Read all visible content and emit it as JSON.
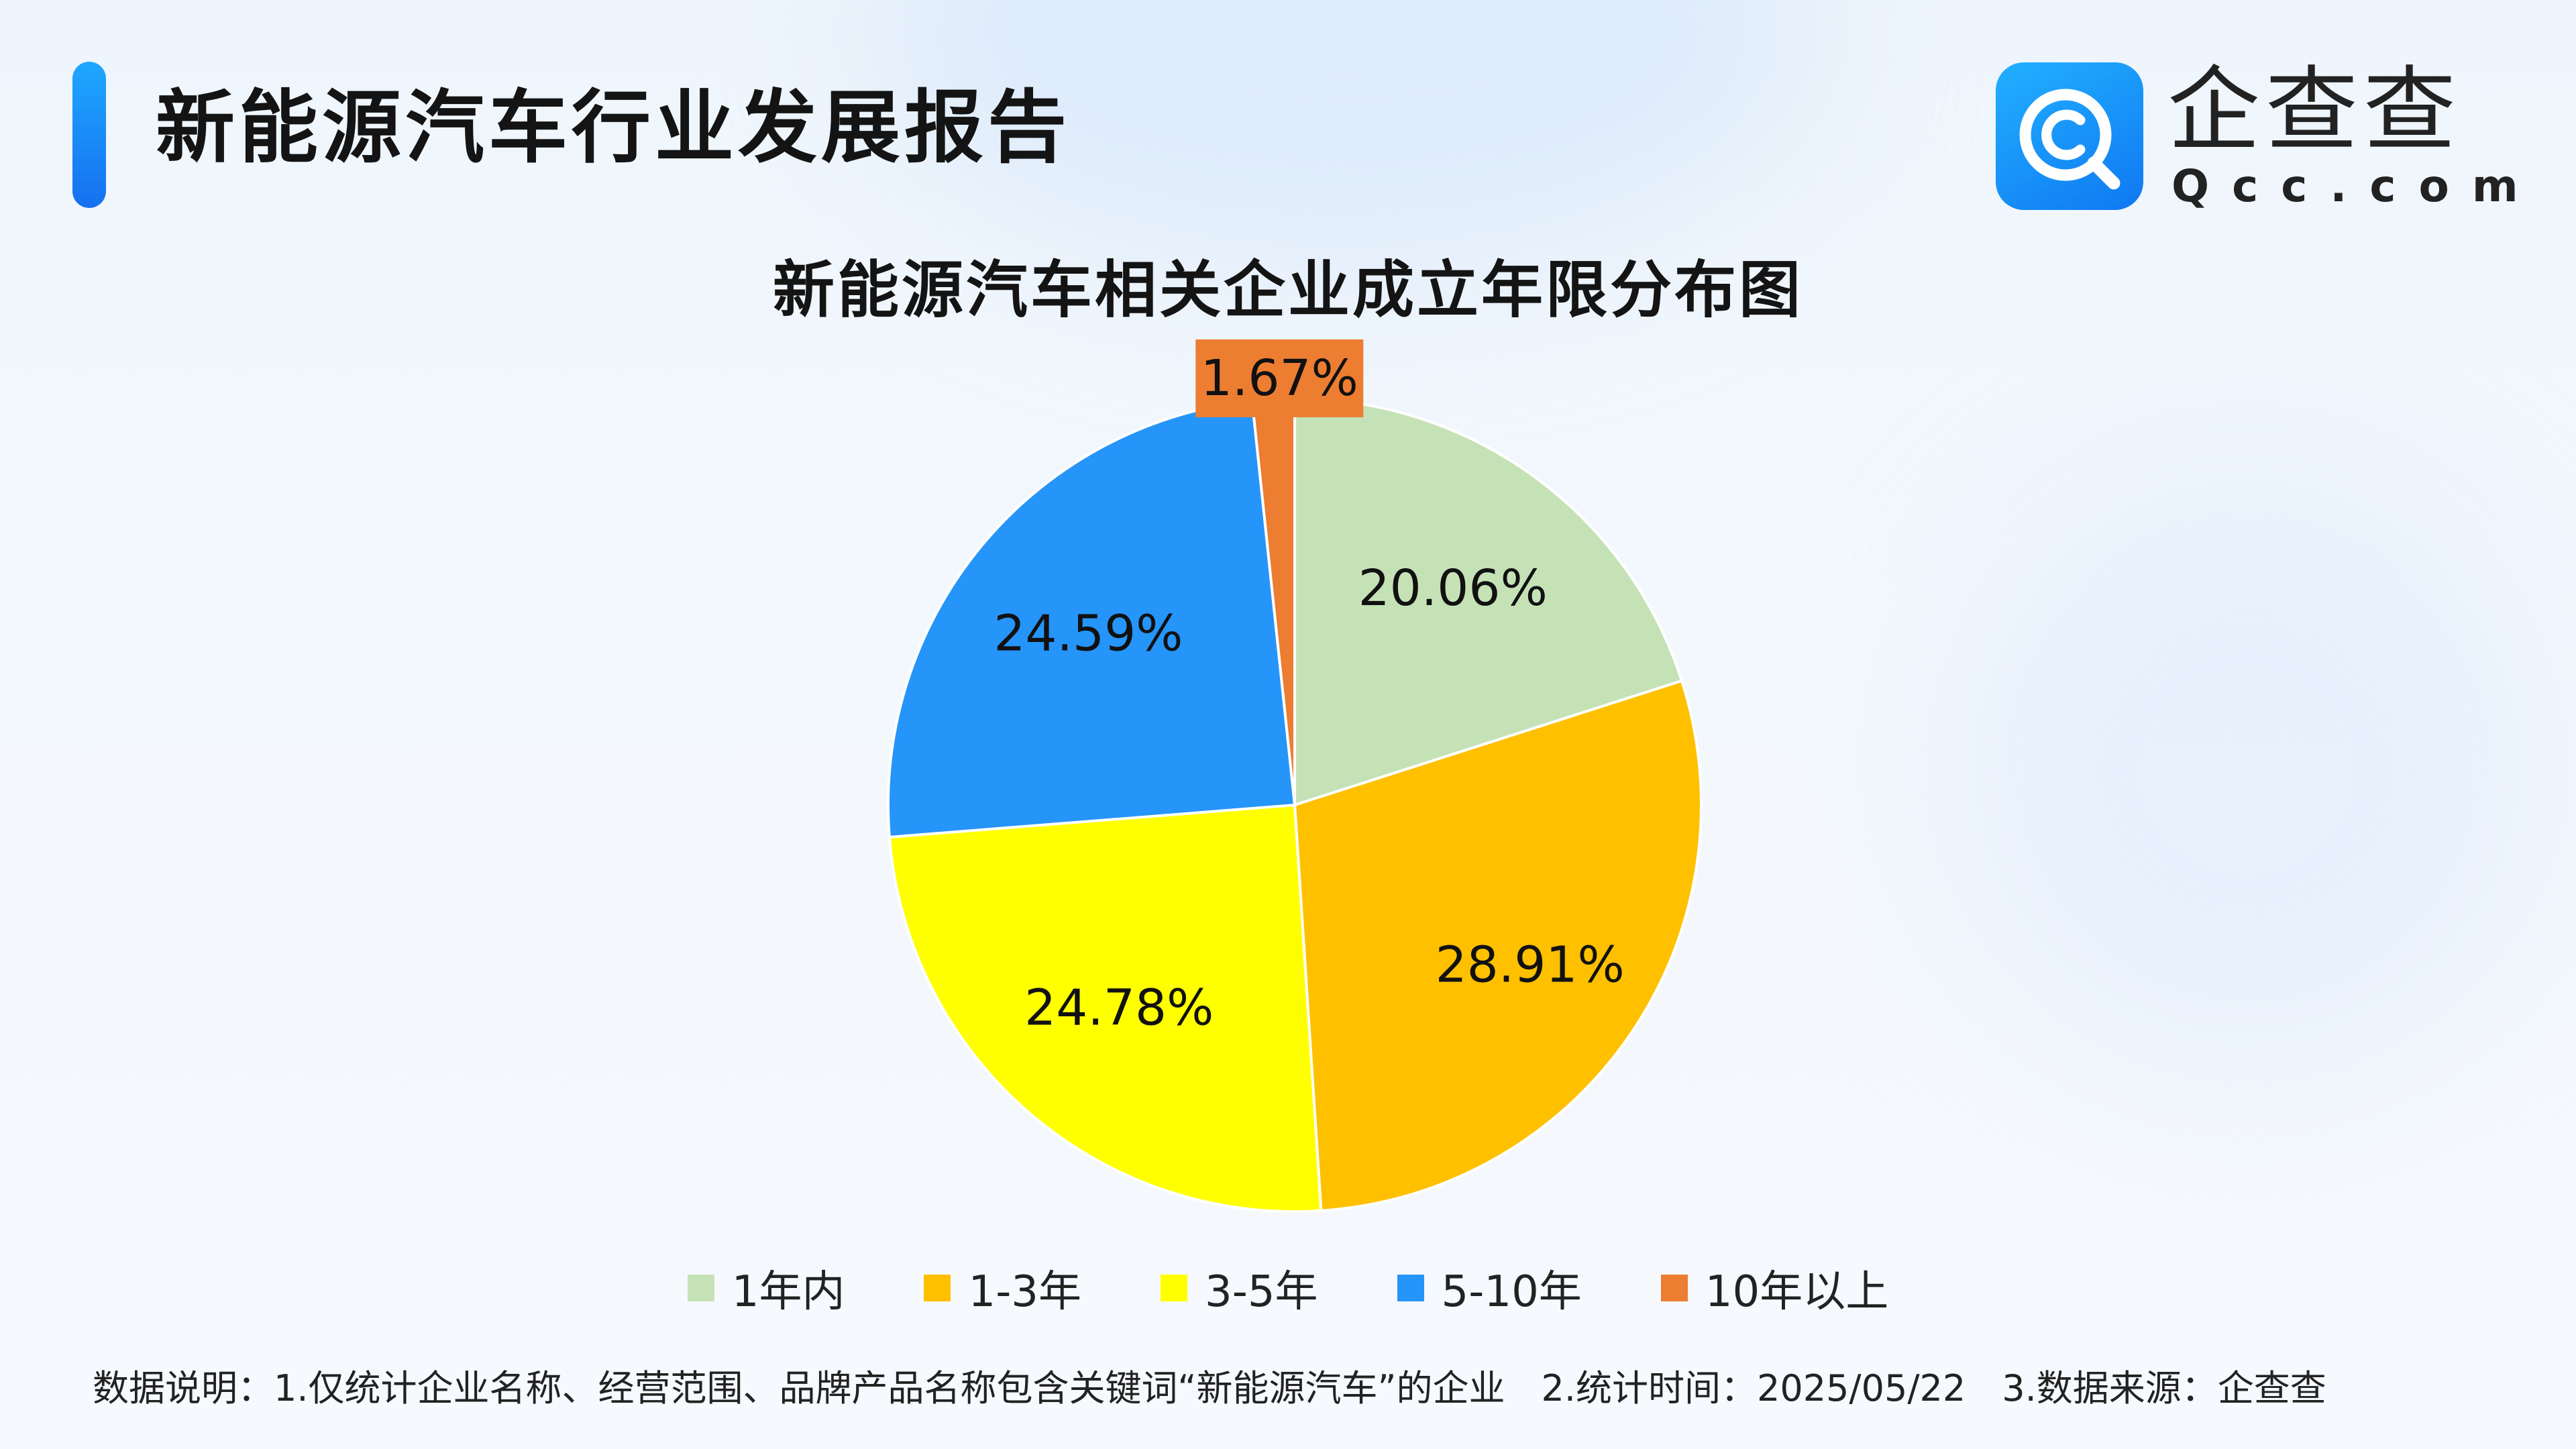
{
  "header": {
    "title": "新能源汽车行业发展报告"
  },
  "logo": {
    "name_cn": "企查查",
    "name_en": "Qcc.com",
    "color": "#1487f5"
  },
  "chart_data": {
    "type": "pie",
    "title": "新能源汽车相关企业成立年限分布图",
    "categories": [
      "1年内",
      "1-3年",
      "3-5年",
      "5-10年",
      "10年以上"
    ],
    "values": [
      20.06,
      28.91,
      24.78,
      24.59,
      1.67
    ],
    "labels": [
      "20.06%",
      "28.91%",
      "24.78%",
      "24.59%",
      "1.67%"
    ],
    "colors": [
      "#c5e2b7",
      "#ffc000",
      "#ffff00",
      "#2595fa",
      "#ed7d31"
    ],
    "start": "12 o'clock",
    "direction": "clockwise",
    "legend_position": "bottom"
  },
  "footer": {
    "note": "数据说明：1.仅统计企业名称、经营范围、品牌产品名称包含关键词“新能源汽车”的企业　2.统计时间：2025/05/22　3.数据来源：企查查"
  }
}
